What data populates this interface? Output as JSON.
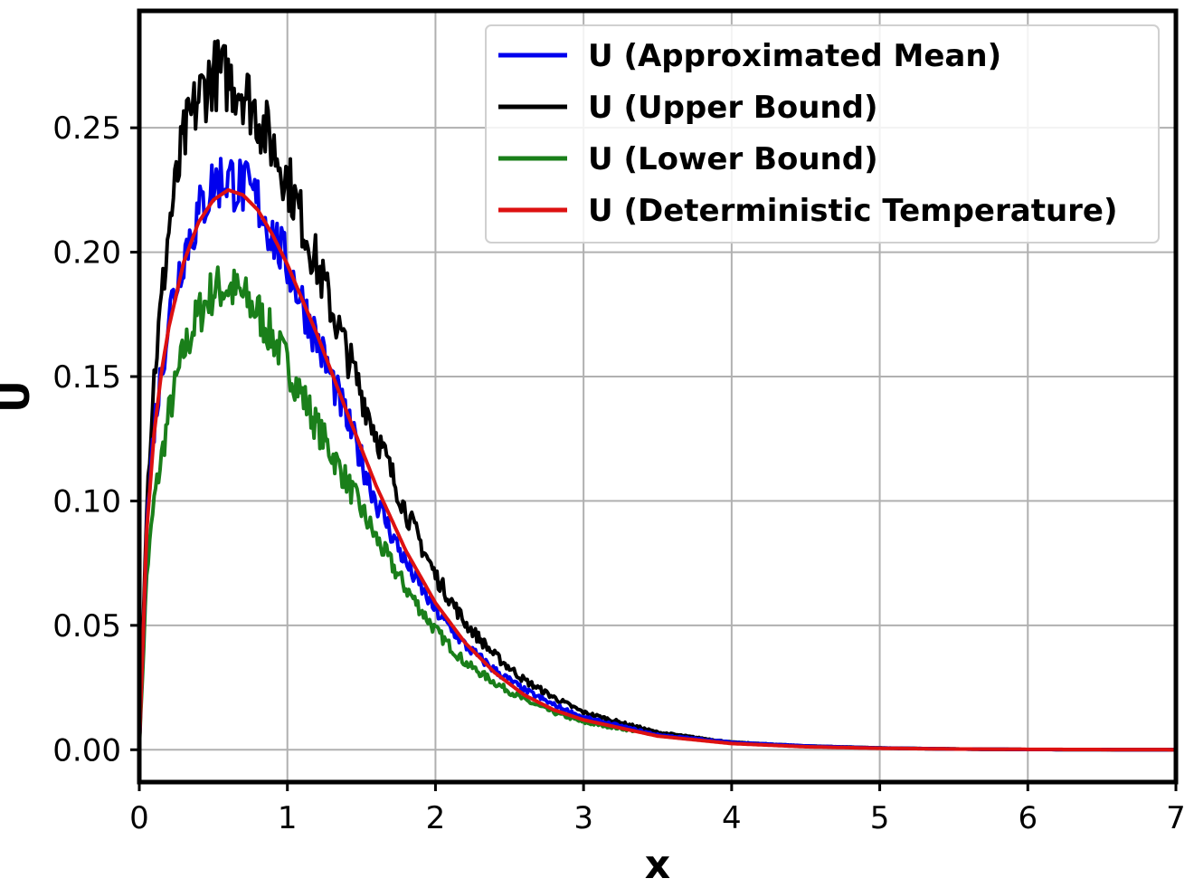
{
  "chart_data": {
    "type": "line",
    "title": "",
    "xlabel": "x",
    "ylabel": "U",
    "xlim": [
      0,
      7
    ],
    "ylim": [
      -0.013,
      0.297
    ],
    "xticks": [
      {
        "value": 0,
        "label": "0"
      },
      {
        "value": 1,
        "label": "1"
      },
      {
        "value": 2,
        "label": "2"
      },
      {
        "value": 3,
        "label": "3"
      },
      {
        "value": 4,
        "label": "4"
      },
      {
        "value": 5,
        "label": "5"
      },
      {
        "value": 6,
        "label": "6"
      },
      {
        "value": 7,
        "label": "7"
      }
    ],
    "yticks": [
      {
        "value": 0.0,
        "label": "0.00"
      },
      {
        "value": 0.05,
        "label": "0.05"
      },
      {
        "value": 0.1,
        "label": "0.10"
      },
      {
        "value": 0.15,
        "label": "0.15"
      },
      {
        "value": 0.2,
        "label": "0.20"
      },
      {
        "value": 0.25,
        "label": "0.25"
      }
    ],
    "grid": true,
    "legend_position": "top-right",
    "series": [
      {
        "name": "U (Approximated Mean)",
        "color": "#0000ee",
        "style": "noisy",
        "x": [
          0,
          0.05,
          0.1,
          0.2,
          0.3,
          0.4,
          0.5,
          0.6,
          0.7,
          0.8,
          0.9,
          1.0,
          1.2,
          1.4,
          1.6,
          1.8,
          2.0,
          2.2,
          2.4,
          2.6,
          2.8,
          3.0,
          3.5,
          4.0,
          4.5,
          5.0,
          5.5,
          6.0,
          6.5,
          7.0
        ],
        "y": [
          0,
          0.09,
          0.13,
          0.175,
          0.2,
          0.215,
          0.228,
          0.23,
          0.226,
          0.22,
          0.207,
          0.195,
          0.165,
          0.133,
          0.1,
          0.075,
          0.056,
          0.042,
          0.032,
          0.024,
          0.018,
          0.013,
          0.006,
          0.003,
          0.0015,
          0.0007,
          0.0003,
          0.0001,
          5e-05,
          0.0
        ]
      },
      {
        "name": "U (Upper Bound)",
        "color": "#000000",
        "style": "noisy",
        "x": [
          0,
          0.05,
          0.1,
          0.2,
          0.3,
          0.4,
          0.5,
          0.6,
          0.7,
          0.8,
          0.9,
          1.0,
          1.2,
          1.4,
          1.6,
          1.8,
          2.0,
          2.2,
          2.4,
          2.6,
          2.8,
          3.0,
          3.5,
          4.0,
          4.5,
          5.0,
          5.5,
          6.0,
          6.5,
          7.0
        ],
        "y": [
          0,
          0.1,
          0.15,
          0.21,
          0.245,
          0.262,
          0.272,
          0.27,
          0.266,
          0.255,
          0.243,
          0.23,
          0.195,
          0.16,
          0.127,
          0.096,
          0.07,
          0.051,
          0.038,
          0.028,
          0.021,
          0.015,
          0.007,
          0.003,
          0.0015,
          0.0007,
          0.0003,
          0.0001,
          5e-05,
          0.0
        ]
      },
      {
        "name": "U (Lower Bound)",
        "color": "#1a7f1a",
        "style": "noisy",
        "x": [
          0,
          0.05,
          0.1,
          0.2,
          0.3,
          0.4,
          0.5,
          0.6,
          0.7,
          0.8,
          0.9,
          1.0,
          1.2,
          1.4,
          1.6,
          1.8,
          2.0,
          2.2,
          2.4,
          2.6,
          2.8,
          3.0,
          3.5,
          4.0,
          4.5,
          5.0,
          5.5,
          6.0,
          6.5,
          7.0
        ],
        "y": [
          0,
          0.07,
          0.1,
          0.135,
          0.16,
          0.175,
          0.185,
          0.186,
          0.182,
          0.176,
          0.166,
          0.155,
          0.13,
          0.108,
          0.085,
          0.065,
          0.048,
          0.035,
          0.027,
          0.02,
          0.015,
          0.011,
          0.006,
          0.003,
          0.0015,
          0.0007,
          0.0003,
          0.0001,
          5e-05,
          0.0
        ]
      },
      {
        "name": "U (Deterministic Temperature)",
        "color": "#dd1111",
        "style": "smooth",
        "x": [
          0,
          0.05,
          0.1,
          0.15,
          0.2,
          0.3,
          0.4,
          0.5,
          0.6,
          0.7,
          0.8,
          0.9,
          1.0,
          1.1,
          1.2,
          1.4,
          1.6,
          1.8,
          2.0,
          2.2,
          2.4,
          2.6,
          2.8,
          3.0,
          3.5,
          4.0,
          4.5,
          5.0,
          5.5,
          6.0,
          6.5,
          7.0
        ],
        "y": [
          0,
          0.088,
          0.127,
          0.152,
          0.17,
          0.196,
          0.212,
          0.221,
          0.225,
          0.223,
          0.217,
          0.207,
          0.195,
          0.181,
          0.167,
          0.136,
          0.106,
          0.08,
          0.059,
          0.043,
          0.031,
          0.022,
          0.016,
          0.012,
          0.0055,
          0.0025,
          0.0012,
          0.0006,
          0.0003,
          0.00015,
          8e-05,
          4e-05
        ]
      }
    ]
  }
}
